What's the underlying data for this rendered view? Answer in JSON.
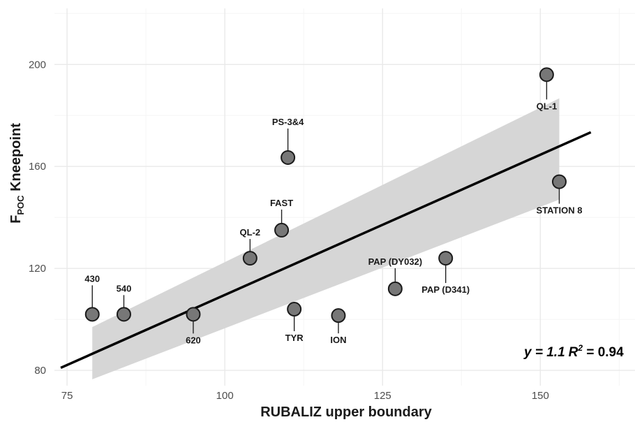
{
  "chart_data": {
    "type": "scatter",
    "title": "",
    "xlabel": "RUBALIZ upper boundary",
    "ylabel": {
      "main": "F",
      "sub": "POC",
      "rest": " Kneepoint"
    },
    "xlim": [
      73,
      165
    ],
    "ylim": [
      74,
      222
    ],
    "x_ticks": [
      75,
      100,
      125,
      150
    ],
    "y_ticks": [
      80,
      120,
      160,
      200
    ],
    "grid": true,
    "legend": "none",
    "colors": {
      "point_fill": "#777777",
      "point_stroke": "#1a1a1a",
      "band": "#d6d6d6",
      "fit_line": "#000000",
      "grid_major": "#e9e9e9",
      "grid_minor": "#f5f5f5"
    },
    "points": [
      {
        "label": "430",
        "x": 79,
        "y": 102
      },
      {
        "label": "540",
        "x": 84,
        "y": 102
      },
      {
        "label": "620",
        "x": 95,
        "y": 102
      },
      {
        "label": "QL-2",
        "x": 104,
        "y": 124
      },
      {
        "label": "FAST",
        "x": 109,
        "y": 135
      },
      {
        "label": "PS-3&4",
        "x": 110,
        "y": 163.5
      },
      {
        "label": "TYR",
        "x": 111,
        "y": 104
      },
      {
        "label": "ION",
        "x": 118,
        "y": 101.5
      },
      {
        "label": "PAP (DY032)",
        "x": 127,
        "y": 112
      },
      {
        "label": "PAP (D341)",
        "x": 135,
        "y": 124
      },
      {
        "label": "QL-1",
        "x": 151,
        "y": 196
      },
      {
        "label": "STATION 8",
        "x": 153,
        "y": 154
      }
    ],
    "fit_line": {
      "x": [
        74,
        158
      ],
      "y": [
        81,
        173.4
      ]
    },
    "confidence_band": {
      "x": [
        79,
        153
      ],
      "upper": [
        97,
        186.7
      ],
      "lower": [
        76.5,
        147
      ]
    },
    "annotation": {
      "y_part": "y = 1.1",
      "r_part": "R",
      "r_exp": "2",
      "value_part": " = 0.94"
    }
  }
}
